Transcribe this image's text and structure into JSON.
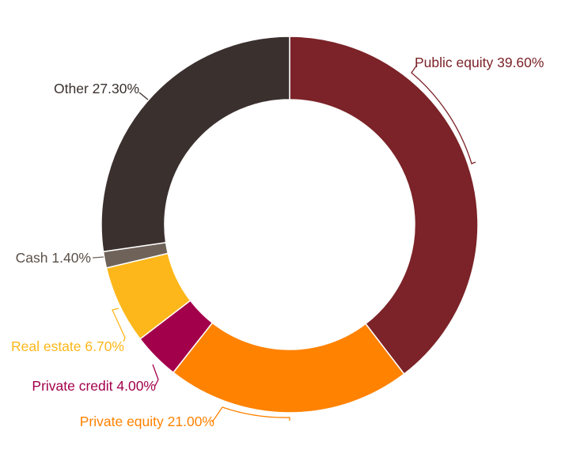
{
  "chart_data": {
    "type": "pie",
    "subtype": "donut",
    "title": "",
    "start_angle_deg": 0,
    "direction": "clockwise",
    "slices": [
      {
        "label": "Public equity",
        "value": 39.6,
        "display": "Public equity 39.60%",
        "color": "#7b2328"
      },
      {
        "label": "Private equity",
        "value": 21.0,
        "display": "Private equity 21.00%",
        "color": "#ff8200"
      },
      {
        "label": "Private credit",
        "value": 4.0,
        "display": "Private credit 4.00%",
        "color": "#a3004b"
      },
      {
        "label": "Real estate",
        "value": 6.7,
        "display": "Real estate 6.70%",
        "color": "#fdb71a"
      },
      {
        "label": "Cash",
        "value": 1.4,
        "display": "Cash 1.40%",
        "color": "#6e6259"
      },
      {
        "label": "Other",
        "value": 27.3,
        "display": "Other 27.30%",
        "color": "#3a302e"
      }
    ],
    "legend": "none",
    "labels_position": "outside with connector brackets"
  },
  "labels": {
    "public_equity": "Public equity 39.60%",
    "private_equity": "Private equity 21.00%",
    "private_credit": "Private credit 4.00%",
    "real_estate": "Real estate 6.70%",
    "cash": "Cash 1.40%",
    "other": "Other 27.30%"
  },
  "label_colors": {
    "public_equity": "#7b2328",
    "private_equity": "#ff8200",
    "private_credit": "#a3004b",
    "real_estate": "#fdb71a",
    "cash": "#5a5048",
    "other": "#3a302e"
  }
}
